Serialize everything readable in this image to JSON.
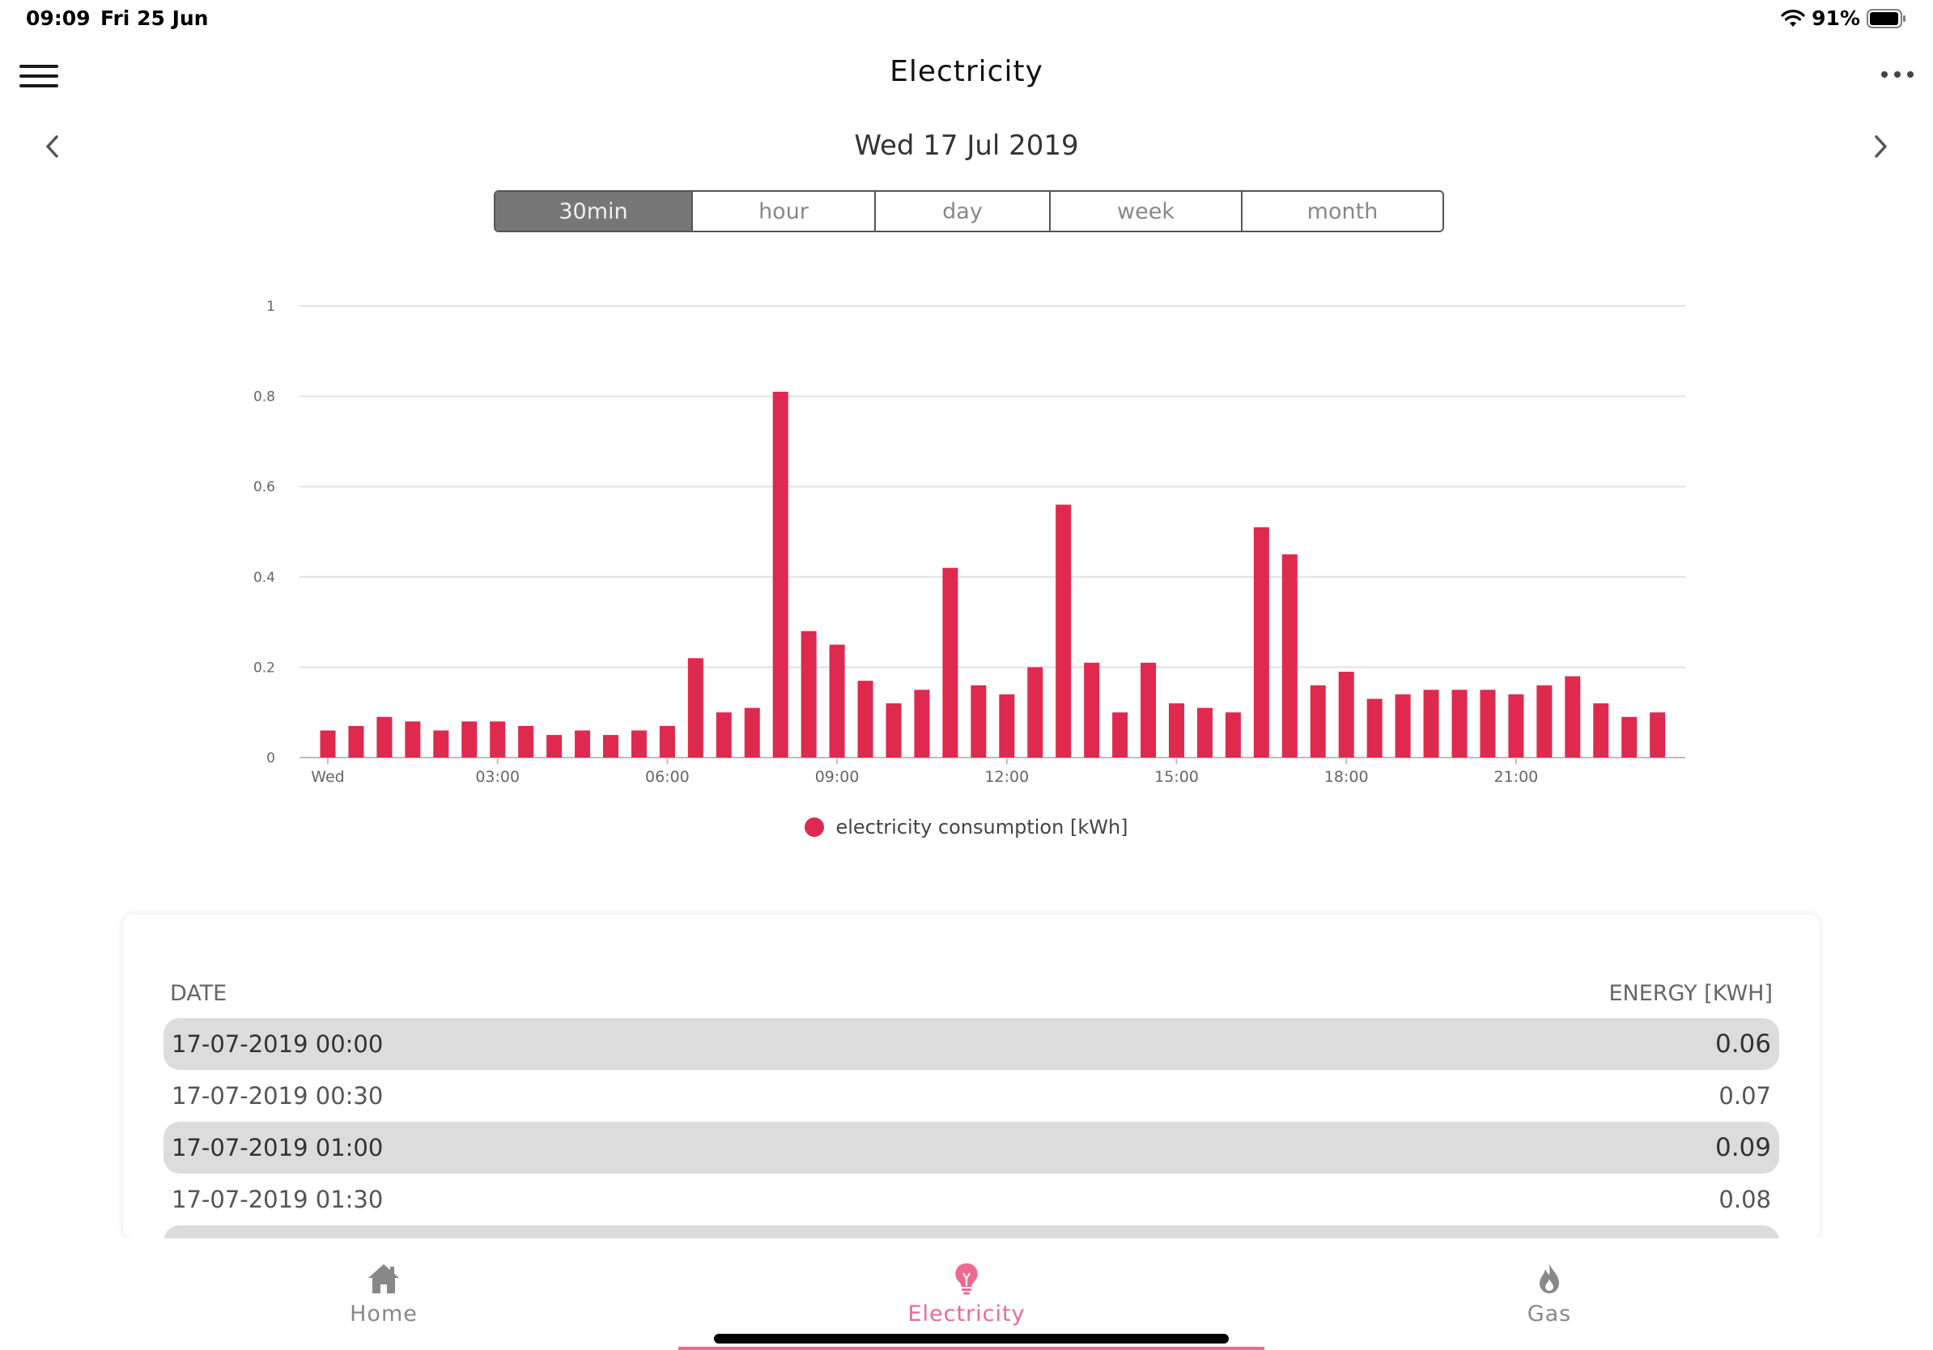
{
  "status": {
    "time": "09:09",
    "date": "Fri 25 Jun",
    "battery": "91%"
  },
  "header": {
    "title": "Electricity",
    "menu_icon": "hamburger-menu-icon",
    "more_icon": "more-horizontal-icon"
  },
  "date_nav": {
    "label": "Wed 17 Jul 2019",
    "prev_icon": "chevron-left-icon",
    "next_icon": "chevron-right-icon"
  },
  "segments": {
    "items": [
      "30min",
      "hour",
      "day",
      "week",
      "month"
    ],
    "active": "30min"
  },
  "chart_data": {
    "type": "bar",
    "title": "",
    "xlabel": "",
    "ylabel": "",
    "ylim": [
      0,
      1
    ],
    "yticks": [
      "0",
      "0.2",
      "0.4",
      "0.6",
      "0.8",
      "1"
    ],
    "xtick_labels": [
      "Wed",
      "03:00",
      "06:00",
      "09:00",
      "12:00",
      "15:00",
      "18:00",
      "21:00"
    ],
    "xtick_indices": [
      0,
      6,
      12,
      18,
      24,
      30,
      36,
      42
    ],
    "grid": true,
    "legend": "bottom",
    "series": [
      {
        "name": "electricity consumption [kWh]",
        "color": "#e0294f",
        "values": [
          0.06,
          0.07,
          0.09,
          0.08,
          0.06,
          0.08,
          0.08,
          0.07,
          0.05,
          0.06,
          0.05,
          0.06,
          0.07,
          0.22,
          0.1,
          0.11,
          0.81,
          0.28,
          0.25,
          0.17,
          0.12,
          0.15,
          0.42,
          0.16,
          0.14,
          0.2,
          0.56,
          0.21,
          0.1,
          0.21,
          0.12,
          0.11,
          0.1,
          0.51,
          0.45,
          0.16,
          0.19,
          0.13,
          0.14,
          0.15,
          0.15,
          0.15,
          0.14,
          0.16,
          0.18,
          0.12,
          0.09,
          0.1
        ]
      }
    ]
  },
  "table": {
    "date_header": "DATE",
    "energy_header": "ENERGY [KWH]",
    "rows": [
      {
        "date": "17-07-2019 00:00",
        "value": "0.06"
      },
      {
        "date": "17-07-2019 00:30",
        "value": "0.07"
      },
      {
        "date": "17-07-2019 01:00",
        "value": "0.09"
      },
      {
        "date": "17-07-2019 01:30",
        "value": "0.08"
      }
    ]
  },
  "tabs": [
    {
      "label": "Home",
      "icon": "home-icon"
    },
    {
      "label": "Electricity",
      "icon": "lightbulb-icon"
    },
    {
      "label": "Gas",
      "icon": "flame-icon"
    }
  ],
  "colors": {
    "accent": "#e0294f",
    "tab_active": "#ee6a90",
    "segment_active": "#777777"
  }
}
